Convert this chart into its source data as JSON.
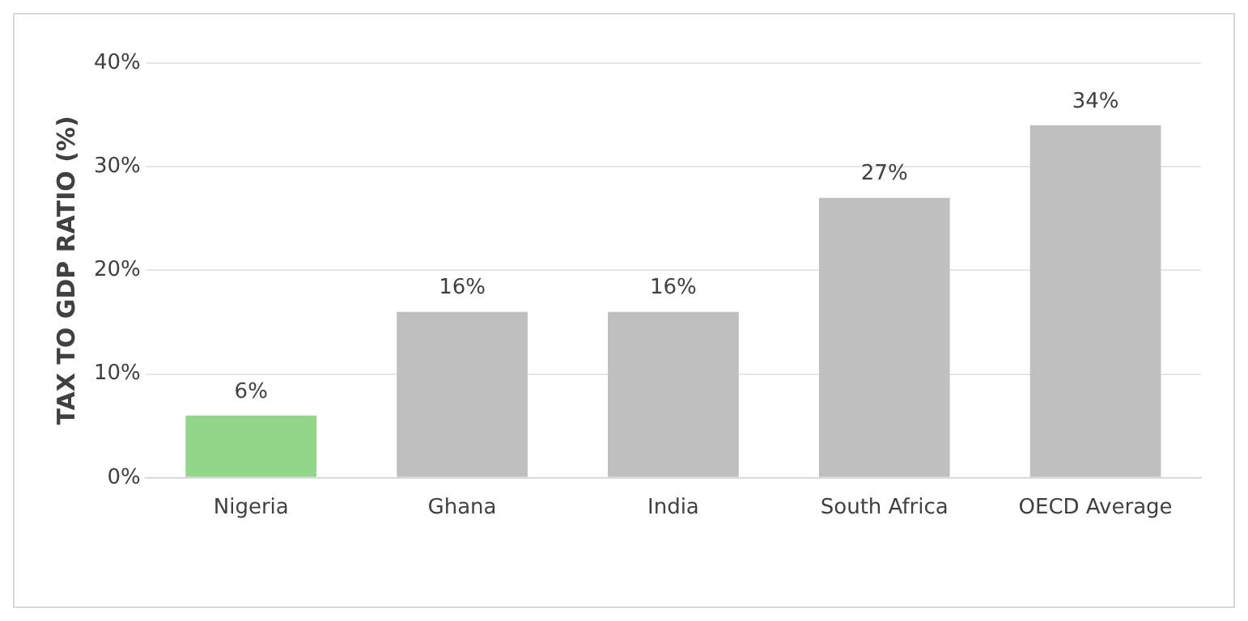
{
  "chart_data": {
    "type": "bar",
    "ylabel": "TAX TO GDP RATIO (%)",
    "categories": [
      "Nigeria",
      "Ghana",
      "India",
      "South Africa",
      "OECD Average"
    ],
    "values": [
      6,
      16,
      16,
      27,
      34
    ],
    "colors": [
      "#92d68a",
      "#bfbfbf",
      "#bfbfbf",
      "#bfbfbf",
      "#bfbfbf"
    ],
    "value_labels": [
      "6%",
      "16%",
      "16%",
      "27%",
      "34%"
    ],
    "ylim": [
      0,
      40
    ],
    "yticks": [
      {
        "value": 0,
        "label": "0%"
      },
      {
        "value": 10,
        "label": "10%"
      },
      {
        "value": 20,
        "label": "20%"
      },
      {
        "value": 30,
        "label": "30%"
      },
      {
        "value": 40,
        "label": "40%"
      }
    ],
    "grid": "y",
    "legend": false
  }
}
